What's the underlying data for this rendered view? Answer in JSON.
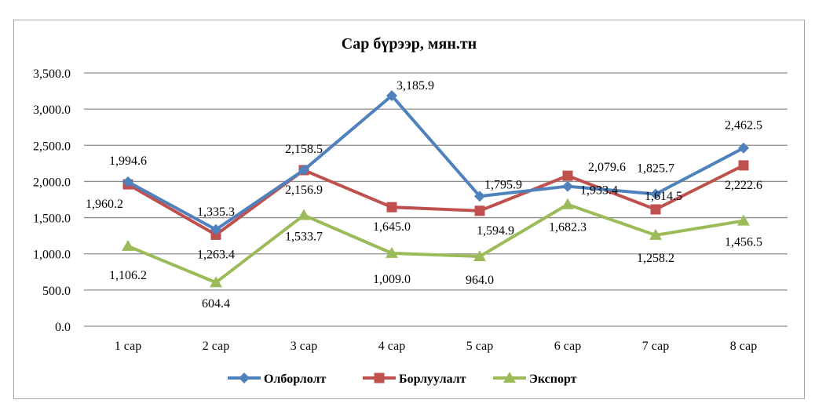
{
  "chart_data": {
    "type": "line",
    "title": "Сар бүрээр, мян.тн",
    "xlabel": "",
    "ylabel": "",
    "categories": [
      "1 сар",
      "2 сар",
      "3 сар",
      "4 сар",
      "5 сар",
      "6 сар",
      "7 сар",
      "8 сар"
    ],
    "ylim": [
      0,
      3500
    ],
    "yticks": [
      0,
      500,
      1000,
      1500,
      2000,
      2500,
      3000,
      3500
    ],
    "ytick_labels": [
      "0.0",
      "500.0",
      "1,000.0",
      "1,500.0",
      "2,000.0",
      "2,500.0",
      "3,000.0",
      "3,500.0"
    ],
    "grid": true,
    "legend_position": "bottom",
    "series": [
      {
        "name": "Олборлолт",
        "color": "#4f81bd",
        "marker": "diamond",
        "values": [
          1994.6,
          1335.3,
          2158.5,
          3185.9,
          1795.9,
          1933.4,
          1825.7,
          2462.5
        ],
        "labels": [
          "1,994.6",
          "1,335.3",
          "2,158.5",
          "3,185.9",
          "1,795.9",
          "1,933.4",
          "1,825.7",
          "2,462.5"
        ]
      },
      {
        "name": "Борлуулалт",
        "color": "#c0504d",
        "marker": "square",
        "values": [
          1960.2,
          1263.4,
          2156.9,
          1645.0,
          1594.9,
          2079.6,
          1614.5,
          2222.6
        ],
        "labels": [
          "1,960.2",
          "1,263.4",
          "2,156.9",
          "1,645.0",
          "1,594.9",
          "2,079.6",
          "1,614.5",
          "2,222.6"
        ]
      },
      {
        "name": "Экспорт",
        "color": "#9bbb59",
        "marker": "triangle",
        "values": [
          1106.2,
          604.4,
          1533.7,
          1009.0,
          964.0,
          1682.3,
          1258.2,
          1456.5
        ],
        "labels": [
          "1,106.2",
          "604.4",
          "1,533.7",
          "1,009.0",
          "964.0",
          "1,682.3",
          "1,258.2",
          "1,456.5"
        ]
      }
    ]
  }
}
